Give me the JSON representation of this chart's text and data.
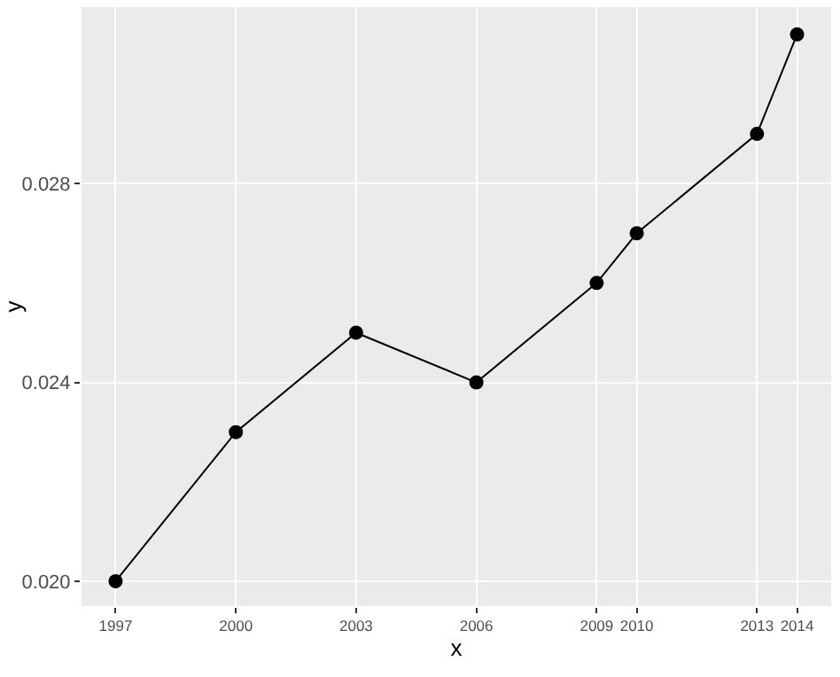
{
  "chart_data": {
    "type": "line",
    "xlabel": "x",
    "ylabel": "y",
    "x": [
      1997,
      2000,
      2003,
      2006,
      2009,
      2010,
      2013,
      2014
    ],
    "series": [
      {
        "color": "#000000",
        "values": [
          0.02,
          0.023,
          0.025,
          0.024,
          0.026,
          0.027,
          0.029,
          0.031
        ]
      }
    ],
    "xlim": [
      1996.15,
      2014.85
    ],
    "xticks": [
      1997,
      2000,
      2003,
      2006,
      2009,
      2010,
      2013,
      2014
    ],
    "ylim": [
      0.0195,
      0.03155
    ],
    "yticks": [
      {
        "value": 0.02,
        "label": "0.020"
      },
      {
        "value": 0.024,
        "label": "0.024"
      },
      {
        "value": 0.028,
        "label": "0.028"
      }
    ],
    "grid": true,
    "marker": "circle",
    "line_style": "solid",
    "legend": false
  }
}
